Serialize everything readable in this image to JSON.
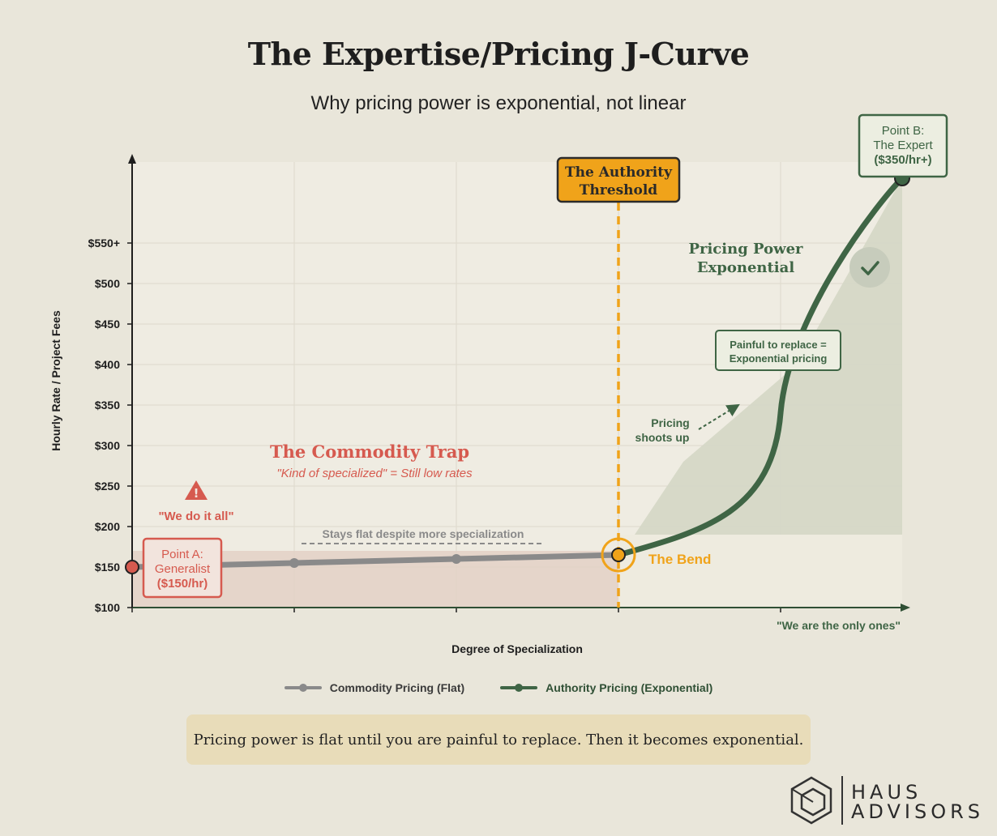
{
  "chart_data": {
    "type": "line",
    "title": "The Expertise/Pricing J-Curve",
    "subtitle": "Why pricing power is exponential, not linear",
    "xlabel": "Degree of Specialization",
    "ylabel": "Hourly Rate / Project Fees",
    "y_ticks": [
      "$100",
      "$150",
      "$200",
      "$250",
      "$300",
      "$350",
      "$400",
      "$450",
      "$500",
      "$550+"
    ],
    "ylim": [
      100,
      550
    ],
    "grid": true,
    "legend_position": "bottom",
    "series": [
      {
        "name": "Commodity Pricing (Flat)",
        "color": "#8a8a8a",
        "x": [
          0,
          1,
          2,
          3
        ],
        "y": [
          150,
          155,
          160,
          165
        ]
      },
      {
        "name": "Authority Pricing (Exponential)",
        "color": "#3f6545",
        "x": [
          3,
          3.6,
          4.2,
          4.75
        ],
        "y": [
          165,
          275,
          455,
          630
        ]
      }
    ],
    "annotations": {
      "threshold": {
        "label_line1": "The Authority",
        "label_line2": "Threshold",
        "x": 3
      },
      "bend": {
        "label": "The Bend",
        "x": 3,
        "y": 165
      },
      "point_a": {
        "line1": "Point A:",
        "line2": "Generalist",
        "line3": "($150/hr)",
        "x": 0,
        "y": 150
      },
      "point_b": {
        "line1": "Point B:",
        "line2": "The Expert",
        "line3": "($350/hr+)",
        "x": 4.75,
        "y": 630
      },
      "commodity_trap": {
        "title": "The Commodity Trap",
        "subtitle": "\"Kind of specialized\" = Still low rates"
      },
      "we_do_it_all": "\"We do it all\"",
      "stays_flat": "Stays flat despite more specialization",
      "pricing_power": {
        "line1": "Pricing Power",
        "line2": "Exponential"
      },
      "painful": {
        "line1": "Painful to replace =",
        "line2": "Exponential pricing"
      },
      "shoots_up": {
        "line1": "Pricing",
        "line2": "shoots up"
      },
      "only_ones": "\"We are the only ones\""
    },
    "colors": {
      "commodity": "#8a8a8a",
      "authority": "#3f6545",
      "threshold": "#f0a31a",
      "trap": "#d65a4f"
    }
  },
  "footer": {
    "callout": "Pricing power is flat until you are painful to replace. Then it becomes exponential.",
    "logo_line1": "HAUS",
    "logo_line2": "ADVISORS"
  }
}
